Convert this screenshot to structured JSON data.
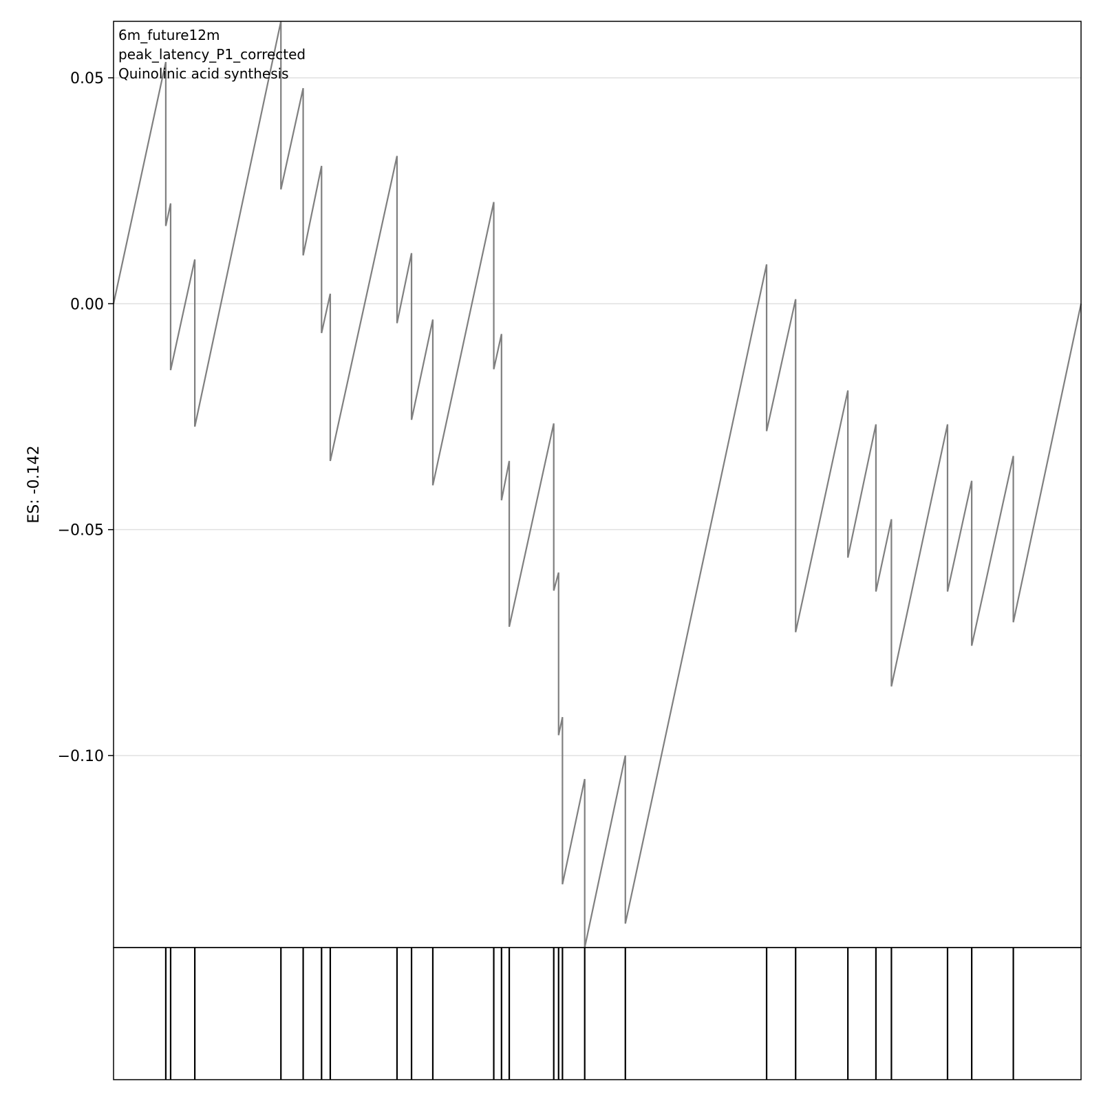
{
  "chart_data": {
    "type": "line",
    "ylabel": "ES: -0.142",
    "annotations": [
      "6m_future12m",
      "peak_latency_P1_corrected",
      "Quinolinic acid synthesis"
    ],
    "ylim": [
      -0.1425,
      0.0625
    ],
    "xlim": [
      0,
      1
    ],
    "yticks": [
      0.05,
      0.0,
      -0.05,
      -0.1
    ],
    "ytick_labels": [
      "0.05",
      "0.00",
      "−0.05",
      "−0.10"
    ],
    "grid": "horizontal",
    "line_color": "#7f7f7f",
    "hit_positions": [
      0.054,
      0.059,
      0.084,
      0.173,
      0.196,
      0.215,
      0.224,
      0.293,
      0.308,
      0.33,
      0.393,
      0.401,
      0.409,
      0.455,
      0.46,
      0.464,
      0.487,
      0.529,
      0.675,
      0.705,
      0.759,
      0.788,
      0.804,
      0.862,
      0.887,
      0.93
    ],
    "es_curve": {
      "x": [
        0,
        0.054,
        0.054,
        0.059,
        0.059,
        0.084,
        0.084,
        0.173,
        0.173,
        0.196,
        0.196,
        0.215,
        0.215,
        0.224,
        0.224,
        0.293,
        0.293,
        0.308,
        0.308,
        0.33,
        0.33,
        0.393,
        0.393,
        0.401,
        0.401,
        0.409,
        0.409,
        0.455,
        0.455,
        0.46,
        0.46,
        0.464,
        0.464,
        0.487,
        0.487,
        0.529,
        0.529,
        0.675,
        0.675,
        0.705,
        0.705,
        0.759,
        0.759,
        0.788,
        0.788,
        0.804,
        0.804,
        0.862,
        0.862,
        0.887,
        0.887,
        0.93,
        0.93,
        1.0
      ],
      "y": [
        0.0,
        0.0535,
        0.0172,
        0.0222,
        -0.0147,
        0.0098,
        -0.0272,
        0.0625,
        0.0253,
        0.0477,
        0.0107,
        0.0305,
        -0.0065,
        0.0022,
        -0.0348,
        0.0327,
        -0.0043,
        0.0112,
        -0.0257,
        -0.0035,
        -0.0402,
        0.0225,
        -0.0145,
        -0.0067,
        -0.0435,
        -0.0348,
        -0.0715,
        -0.0265,
        -0.0635,
        -0.0595,
        -0.0955,
        -0.0915,
        -0.1285,
        -0.1052,
        -0.1425,
        -0.1,
        -0.1372,
        0.0087,
        -0.0282,
        0.001,
        -0.0727,
        -0.0192,
        -0.0562,
        -0.0267,
        -0.0637,
        -0.0477,
        -0.0847,
        -0.0267,
        -0.0637,
        -0.0392,
        -0.0757,
        -0.0337,
        -0.0705,
        0.0
      ]
    }
  }
}
